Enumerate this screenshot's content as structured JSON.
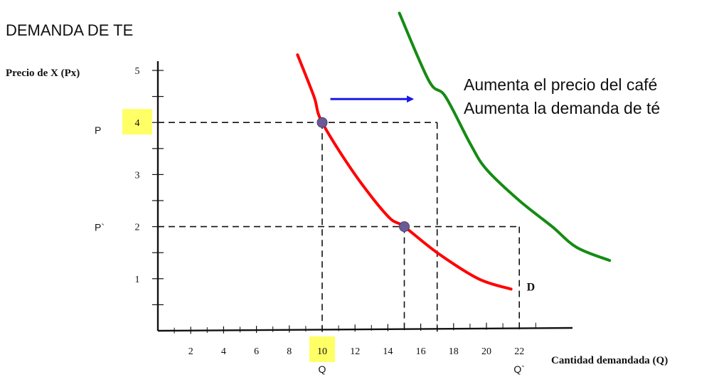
{
  "title": "DEMANDA DE TE",
  "annotation": {
    "line1": "Aumenta el precio del café",
    "line2": "Aumenta la demanda de té"
  },
  "chart_data": {
    "type": "line",
    "ylabel": "Precio  de X (Px)",
    "xlabel": "Cantidad demandada (Q)",
    "x_ticks": [
      2,
      4,
      6,
      8,
      10,
      12,
      14,
      16,
      18,
      20,
      22
    ],
    "x_tick_labels": [
      "2",
      "4",
      "6",
      "8",
      "10",
      "12",
      "14",
      "16",
      "18",
      "20",
      "22"
    ],
    "y_ticks": [
      1,
      2,
      3,
      4,
      5
    ],
    "y_tick_labels": [
      "1",
      "2",
      "3",
      "4",
      "5"
    ],
    "xlim": [
      0,
      26
    ],
    "ylim": [
      0,
      5.5
    ],
    "highlighted_ticks": {
      "x": "10",
      "y": "4"
    },
    "price_labels": [
      {
        "text": "P",
        "value": 4
      },
      {
        "text": "P`",
        "value": 2
      }
    ],
    "quantity_labels": [
      {
        "text": "Q",
        "value": 10
      },
      {
        "text": "Q`",
        "value": 22
      }
    ],
    "curve_label": "D",
    "series": [
      {
        "color": "#ff0000",
        "points": [
          [
            8.5,
            5.3
          ],
          [
            9.5,
            4.5
          ],
          [
            10,
            4
          ],
          [
            12,
            3
          ],
          [
            14,
            2.2
          ],
          [
            15,
            2
          ],
          [
            17,
            1.5
          ],
          [
            19.5,
            1
          ],
          [
            21.5,
            0.8
          ]
        ]
      },
      {
        "color": "#148c14",
        "points": [
          [
            14.7,
            6.1
          ],
          [
            16.5,
            4.8
          ],
          [
            17.5,
            4.5
          ],
          [
            19,
            3.6
          ],
          [
            20,
            3.1
          ],
          [
            22,
            2.5
          ],
          [
            24,
            2
          ],
          [
            25.5,
            1.6
          ],
          [
            27.5,
            1.35
          ]
        ]
      }
    ],
    "points": [
      {
        "x": 10,
        "y": 4
      },
      {
        "x": 15,
        "y": 2
      }
    ],
    "guides": [
      {
        "x": 10,
        "y": 4,
        "to_x": 17
      },
      {
        "x": 15,
        "y": 2,
        "to_x": 22
      }
    ],
    "shift_arrow": {
      "from": [
        10.5,
        4.45
      ],
      "to": [
        15.5,
        4.45
      ],
      "color": "#1a1ae6"
    }
  }
}
